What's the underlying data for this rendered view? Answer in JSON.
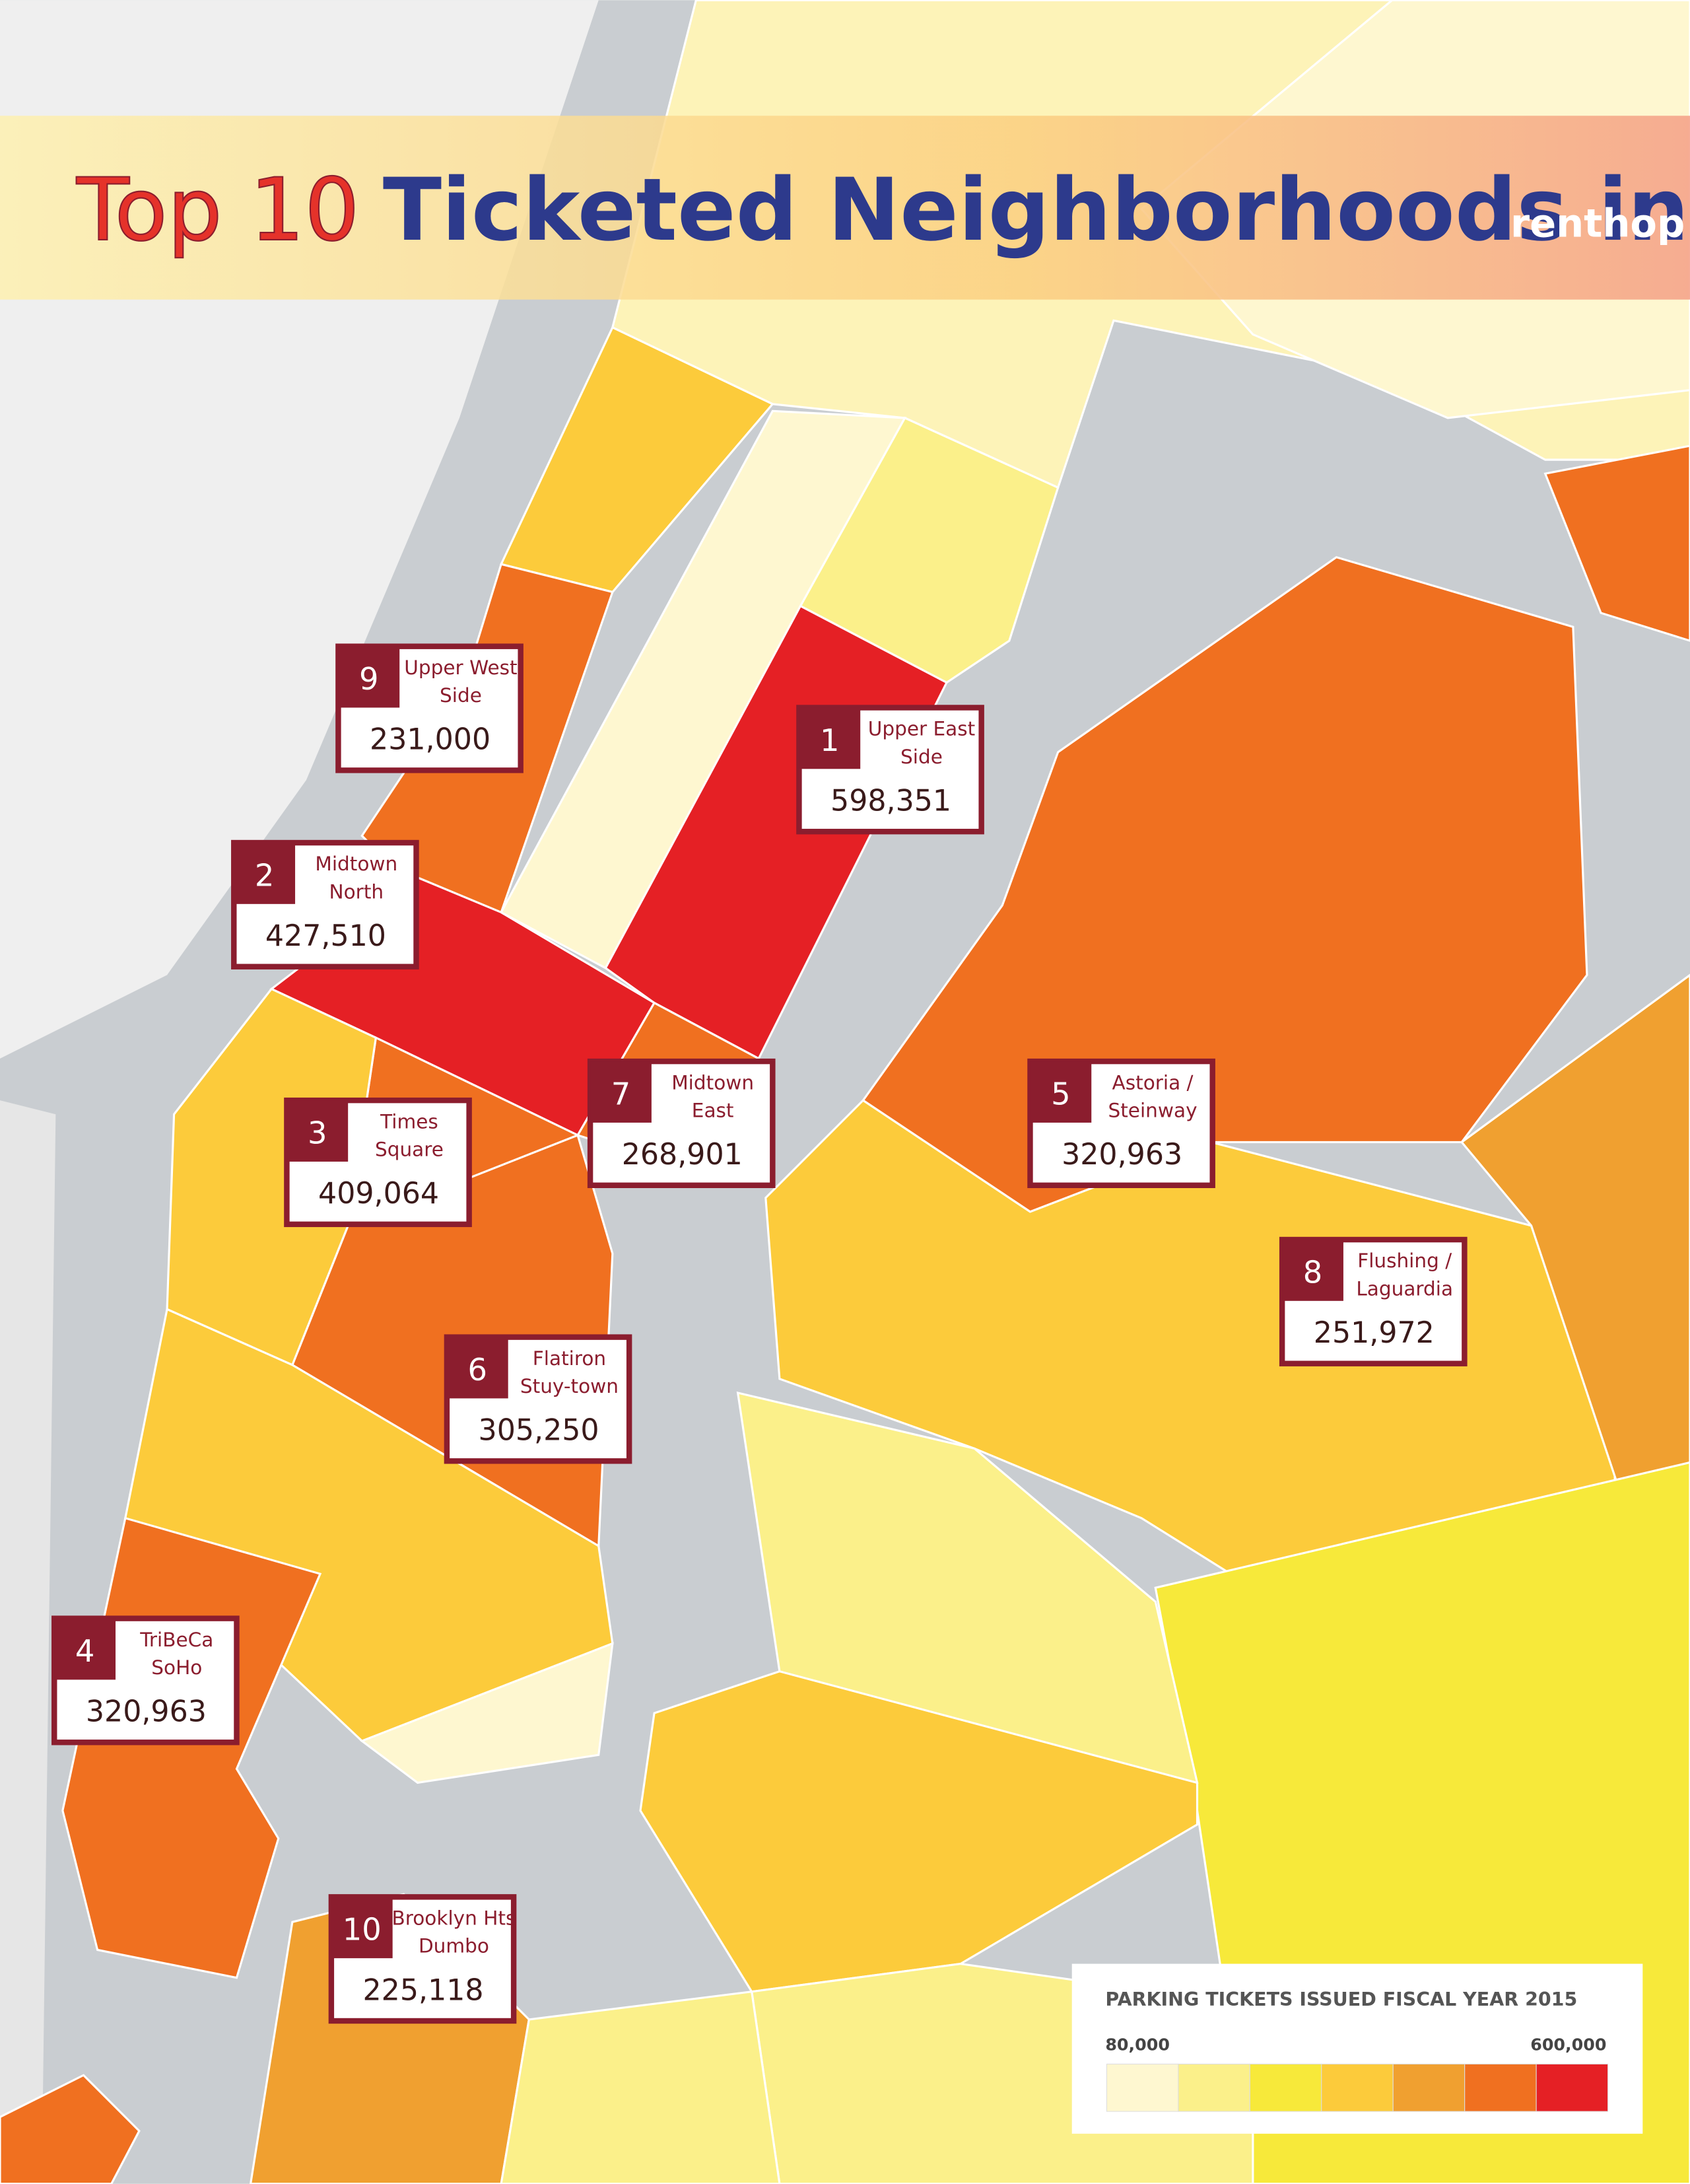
{
  "header": {
    "title_part1": "Top 10",
    "title_part2": "Ticketed Neighborhoods in NYC",
    "logo": "renthop"
  },
  "labels": [
    {
      "rank": 9,
      "name_lines": [
        "Upper West",
        "Side"
      ],
      "value": "231,000"
    },
    {
      "rank": 1,
      "name_lines": [
        "Upper East",
        "Side"
      ],
      "value": "598,351"
    },
    {
      "rank": 2,
      "name_lines": [
        "Midtown",
        "North"
      ],
      "value": "427,510"
    },
    {
      "rank": 7,
      "name_lines": [
        "Midtown",
        "East"
      ],
      "value": "268,901"
    },
    {
      "rank": 5,
      "name_lines": [
        "Astoria /",
        "Steinway"
      ],
      "value": "320,963"
    },
    {
      "rank": 3,
      "name_lines": [
        "Times",
        "Square"
      ],
      "value": "409,064"
    },
    {
      "rank": 8,
      "name_lines": [
        "Flushing /",
        "Laguardia"
      ],
      "value": "251,972"
    },
    {
      "rank": 6,
      "name_lines": [
        "Flatiron",
        "Stuy-town"
      ],
      "value": "305,250"
    },
    {
      "rank": 4,
      "name_lines": [
        "TriBeCa",
        "SoHo"
      ],
      "value": "320,963"
    },
    {
      "rank": 10,
      "name_lines": [
        "Brooklyn Hts",
        "Dumbo"
      ],
      "value": "225,118"
    }
  ],
  "legend": {
    "title": "PARKING TICKETS ISSUED FISCAL YEAR 2015",
    "min_label": "80,000",
    "max_label": "600,000",
    "colors": [
      "#fef7d0",
      "#fbf08a",
      "#f7e93a",
      "#fccb3b",
      "#f0a030",
      "#f07020",
      "#e52025"
    ]
  }
}
